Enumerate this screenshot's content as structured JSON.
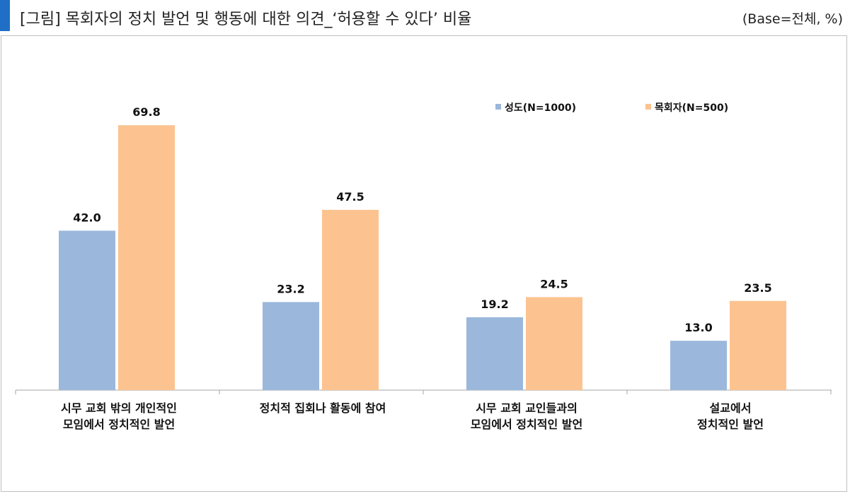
{
  "header": {
    "title": "[그림] 목회자의 정치 발언 및 행동에 대한 의견_‘허용할 수 있다’ 비율",
    "base": "(Base=전체, %)"
  },
  "colors": {
    "accent": "#1f6fc7",
    "series1": "#9bb7dc",
    "series2": "#fcc390"
  },
  "chart_data": {
    "type": "bar",
    "title": "",
    "xlabel": "",
    "ylabel": "",
    "ylim": [
      0,
      80
    ],
    "grid": false,
    "legend_position": "top-right",
    "categories": [
      [
        "시무 교회 밖의 개인적인",
        "모임에서 정치적인 발언"
      ],
      [
        "정치적 집회나 활동에 참여"
      ],
      [
        "시무 교회 교인들과의",
        "모임에서 정치적인 발언"
      ],
      [
        "설교에서",
        "정치적인 발언"
      ]
    ],
    "series": [
      {
        "name": "성도(N=1000)",
        "values": [
          42.0,
          23.2,
          19.2,
          13.0
        ],
        "labels": [
          "42.0",
          "23.2",
          "19.2",
          "13.0"
        ]
      },
      {
        "name": "목회자(N=500)",
        "values": [
          69.8,
          47.5,
          24.5,
          23.5
        ],
        "labels": [
          "69.8",
          "47.5",
          "24.5",
          "23.5"
        ]
      }
    ]
  }
}
